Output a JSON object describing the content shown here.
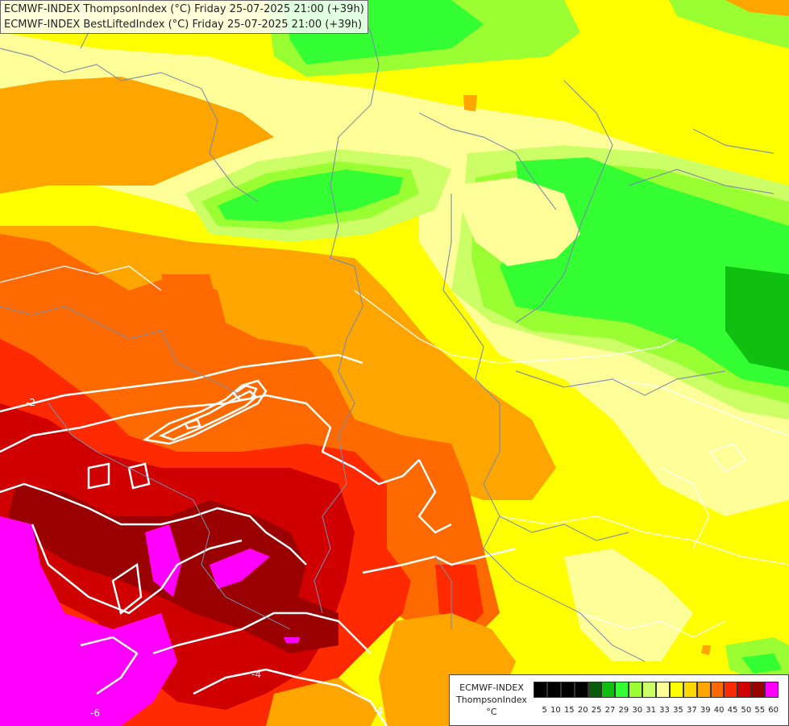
{
  "header": {
    "line1": "ECMWF-INDEX ThompsonIndex (°C) Friday 25-07-2025 21:00 (+39h)",
    "line2": "ECMWF-INDEX BestLiftedIndex (°C) Friday 25-07-2025 21:00 (+39h)"
  },
  "legend": {
    "title_line1": "ECMWF-INDEX",
    "title_line2": "ThompsonIndex",
    "unit": "°C",
    "colors": [
      "#000000",
      "#000000",
      "#000000",
      "#000000",
      "#0a5a0a",
      "#0f8a0f",
      "#10c010",
      "#33ff33",
      "#99ff33",
      "#ccff66",
      "#ffff99",
      "#ffff00",
      "#ffd700",
      "#ffa500",
      "#ff6a00",
      "#ff2a00",
      "#d00000",
      "#9a0000",
      "#ff00ff",
      "#cc33ff",
      "#9933ff",
      "#6633ff",
      "#0000ff"
    ],
    "ticks": [
      "",
      "5",
      "10",
      "15",
      "20",
      "25",
      "27",
      "29",
      "30",
      "31",
      "33",
      "35",
      "37",
      "39",
      "40",
      "45",
      "50",
      "55",
      "60"
    ]
  },
  "contour_labels": {
    "l1": "-2",
    "l2": "-4",
    "l3": "-4",
    "l4": "-6"
  }
}
